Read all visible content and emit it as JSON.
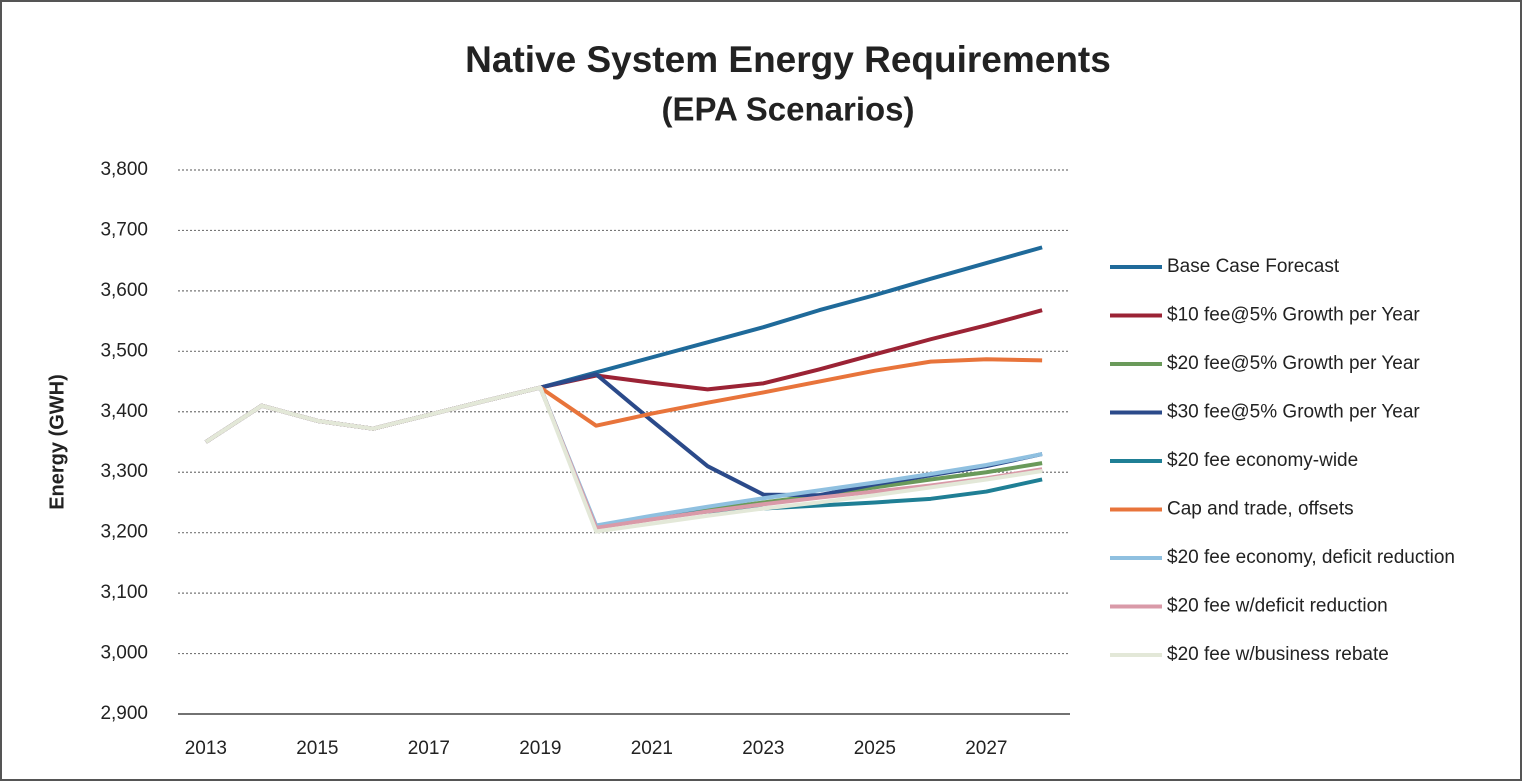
{
  "chart_data": {
    "type": "line",
    "title": "Native System Energy Requirements",
    "subtitle": "(EPA Scenarios)",
    "y_label": "Energy (GWH)",
    "x": [
      2013,
      2014,
      2015,
      2016,
      2017,
      2018,
      2019,
      2020,
      2021,
      2022,
      2023,
      2024,
      2025,
      2026,
      2027,
      2028
    ],
    "xlim": [
      2012.5,
      2028.5
    ],
    "xticks": [
      2013,
      2015,
      2017,
      2019,
      2021,
      2023,
      2025,
      2027
    ],
    "ylim": [
      2900,
      3800
    ],
    "yticks": [
      {
        "value": 2900,
        "label": "2,900"
      },
      {
        "value": 3000,
        "label": "3,000"
      },
      {
        "value": 3100,
        "label": "3,100"
      },
      {
        "value": 3200,
        "label": "3,200"
      },
      {
        "value": 3300,
        "label": "3,300"
      },
      {
        "value": 3400,
        "label": "3,400"
      },
      {
        "value": 3500,
        "label": "3,500"
      },
      {
        "value": 3600,
        "label": "3,600"
      },
      {
        "value": 3700,
        "label": "3,700"
      },
      {
        "value": 3800,
        "label": "3,800"
      }
    ],
    "grid": true,
    "legend": "right",
    "series": [
      {
        "name": "Base Case Forecast",
        "color": "#1f6a9a",
        "values": [
          3350,
          3410,
          3385,
          3372,
          3395,
          3418,
          3440,
          3465,
          3490,
          3515,
          3540,
          3568,
          3593,
          3620,
          3646,
          3672
        ]
      },
      {
        "name": "$10 fee@5% Growth per Year",
        "color": "#9b2335",
        "values": [
          3350,
          3410,
          3385,
          3372,
          3395,
          3418,
          3440,
          3460,
          3448,
          3437,
          3447,
          3470,
          3495,
          3520,
          3543,
          3568
        ]
      },
      {
        "name": "$20 fee@5% Growth per Year",
        "color": "#6a9a5a",
        "values": [
          3350,
          3410,
          3385,
          3372,
          3395,
          3418,
          3440,
          3210,
          3224,
          3238,
          3250,
          3262,
          3275,
          3288,
          3300,
          3315
        ]
      },
      {
        "name": "$30 fee@5% Growth per Year",
        "color": "#2b4a8a",
        "values": [
          3350,
          3410,
          3385,
          3372,
          3395,
          3418,
          3440,
          3462,
          3385,
          3310,
          3263,
          3262,
          3280,
          3295,
          3310,
          3330
        ]
      },
      {
        "name": "$20 fee economy-wide",
        "color": "#1f7f95",
        "values": [
          3350,
          3410,
          3385,
          3372,
          3395,
          3418,
          3440,
          3210,
          3225,
          3235,
          3240,
          3245,
          3250,
          3256,
          3268,
          3288
        ]
      },
      {
        "name": "Cap and trade, offsets",
        "color": "#e8743b",
        "values": [
          3350,
          3410,
          3385,
          3372,
          3395,
          3418,
          3440,
          3377,
          3397,
          3415,
          3432,
          3450,
          3468,
          3483,
          3487,
          3485
        ]
      },
      {
        "name": "$20 fee economy, deficit reduction",
        "color": "#8fc0e0",
        "values": [
          3350,
          3410,
          3385,
          3372,
          3395,
          3418,
          3440,
          3212,
          3228,
          3243,
          3257,
          3270,
          3283,
          3297,
          3312,
          3330
        ]
      },
      {
        "name": "$20 fee w/deficit reduction",
        "color": "#d99aa8",
        "values": [
          3350,
          3410,
          3385,
          3372,
          3395,
          3418,
          3440,
          3208,
          3222,
          3235,
          3247,
          3258,
          3268,
          3278,
          3290,
          3305
        ]
      },
      {
        "name": "$20 fee w/business rebate",
        "color": "#e3e8d8",
        "values": [
          3350,
          3410,
          3385,
          3372,
          3395,
          3418,
          3440,
          3202,
          3215,
          3228,
          3240,
          3250,
          3262,
          3275,
          3288,
          3302
        ]
      }
    ]
  }
}
